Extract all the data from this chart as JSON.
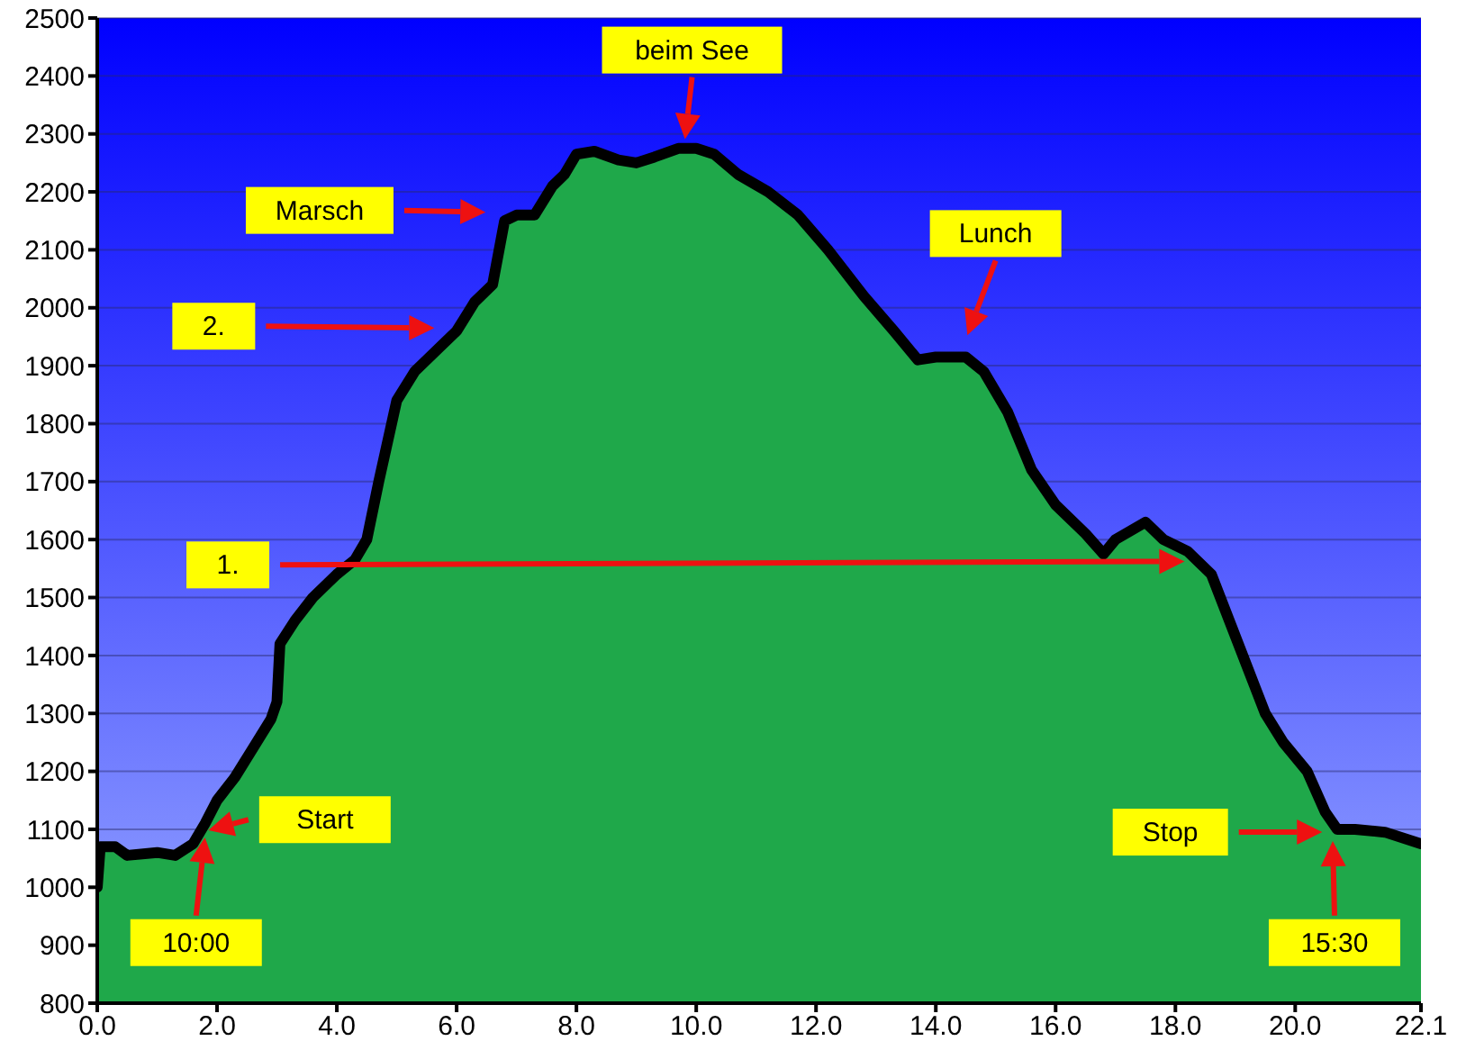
{
  "chart_data": {
    "type": "area",
    "x": [
      0,
      0.05,
      0.3,
      0.5,
      1.0,
      1.3,
      1.6,
      1.8,
      2.0,
      2.3,
      2.6,
      2.9,
      3.0,
      3.05,
      3.3,
      3.6,
      4.0,
      4.3,
      4.5,
      4.7,
      5.0,
      5.3,
      5.7,
      6.0,
      6.3,
      6.6,
      6.8,
      7.0,
      7.3,
      7.6,
      7.8,
      8.0,
      8.3,
      8.7,
      9.0,
      9.3,
      9.7,
      10.0,
      10.3,
      10.7,
      11.2,
      11.7,
      12.2,
      12.5,
      12.8,
      13.3,
      13.7,
      14.0,
      14.5,
      14.8,
      15.2,
      15.6,
      16.0,
      16.5,
      16.8,
      17.0,
      17.5,
      17.8,
      18.2,
      18.6,
      18.9,
      19.2,
      19.5,
      19.8,
      20.2,
      20.5,
      20.7,
      21.0,
      21.5,
      22.1
    ],
    "series": [
      {
        "color": "#1fa84a",
        "values": [
          1000,
          1070,
          1070,
          1055,
          1060,
          1055,
          1075,
          1110,
          1150,
          1190,
          1240,
          1290,
          1320,
          1420,
          1460,
          1500,
          1540,
          1565,
          1600,
          1700,
          1840,
          1890,
          1930,
          1960,
          2010,
          2040,
          2150,
          2160,
          2160,
          2210,
          2230,
          2265,
          2270,
          2255,
          2250,
          2260,
          2275,
          2275,
          2265,
          2230,
          2200,
          2160,
          2100,
          2060,
          2020,
          1960,
          1910,
          1915,
          1915,
          1890,
          1820,
          1720,
          1660,
          1610,
          1575,
          1600,
          1630,
          1600,
          1580,
          1540,
          1460,
          1380,
          1300,
          1250,
          1200,
          1130,
          1100,
          1100,
          1095,
          1075
        ]
      }
    ],
    "xlim": [
      0,
      22.1
    ],
    "xticks": [
      {
        "value": 0,
        "label": "0.0"
      },
      {
        "value": 2,
        "label": "2.0"
      },
      {
        "value": 4,
        "label": "4.0"
      },
      {
        "value": 6,
        "label": "6.0"
      },
      {
        "value": 8,
        "label": "8.0"
      },
      {
        "value": 10,
        "label": "10.0"
      },
      {
        "value": 12,
        "label": "12.0"
      },
      {
        "value": 14,
        "label": "14.0"
      },
      {
        "value": 16,
        "label": "16.0"
      },
      {
        "value": 18,
        "label": "18.0"
      },
      {
        "value": 20,
        "label": "20.0"
      },
      {
        "value": 22.1,
        "label": "22.1"
      }
    ],
    "ylim": [
      800,
      2500
    ],
    "yticks": [
      800,
      900,
      1000,
      1100,
      1200,
      1300,
      1400,
      1500,
      1600,
      1700,
      1800,
      1900,
      2000,
      2100,
      2200,
      2300,
      2400,
      2500
    ],
    "grid": "y",
    "legend": false,
    "marker": "none",
    "line_style": "solid",
    "annotations": [
      "beim See",
      "Marsch",
      "2.",
      "Lunch",
      "1.",
      "Start",
      "10:00",
      "Stop",
      "15:30"
    ]
  }
}
